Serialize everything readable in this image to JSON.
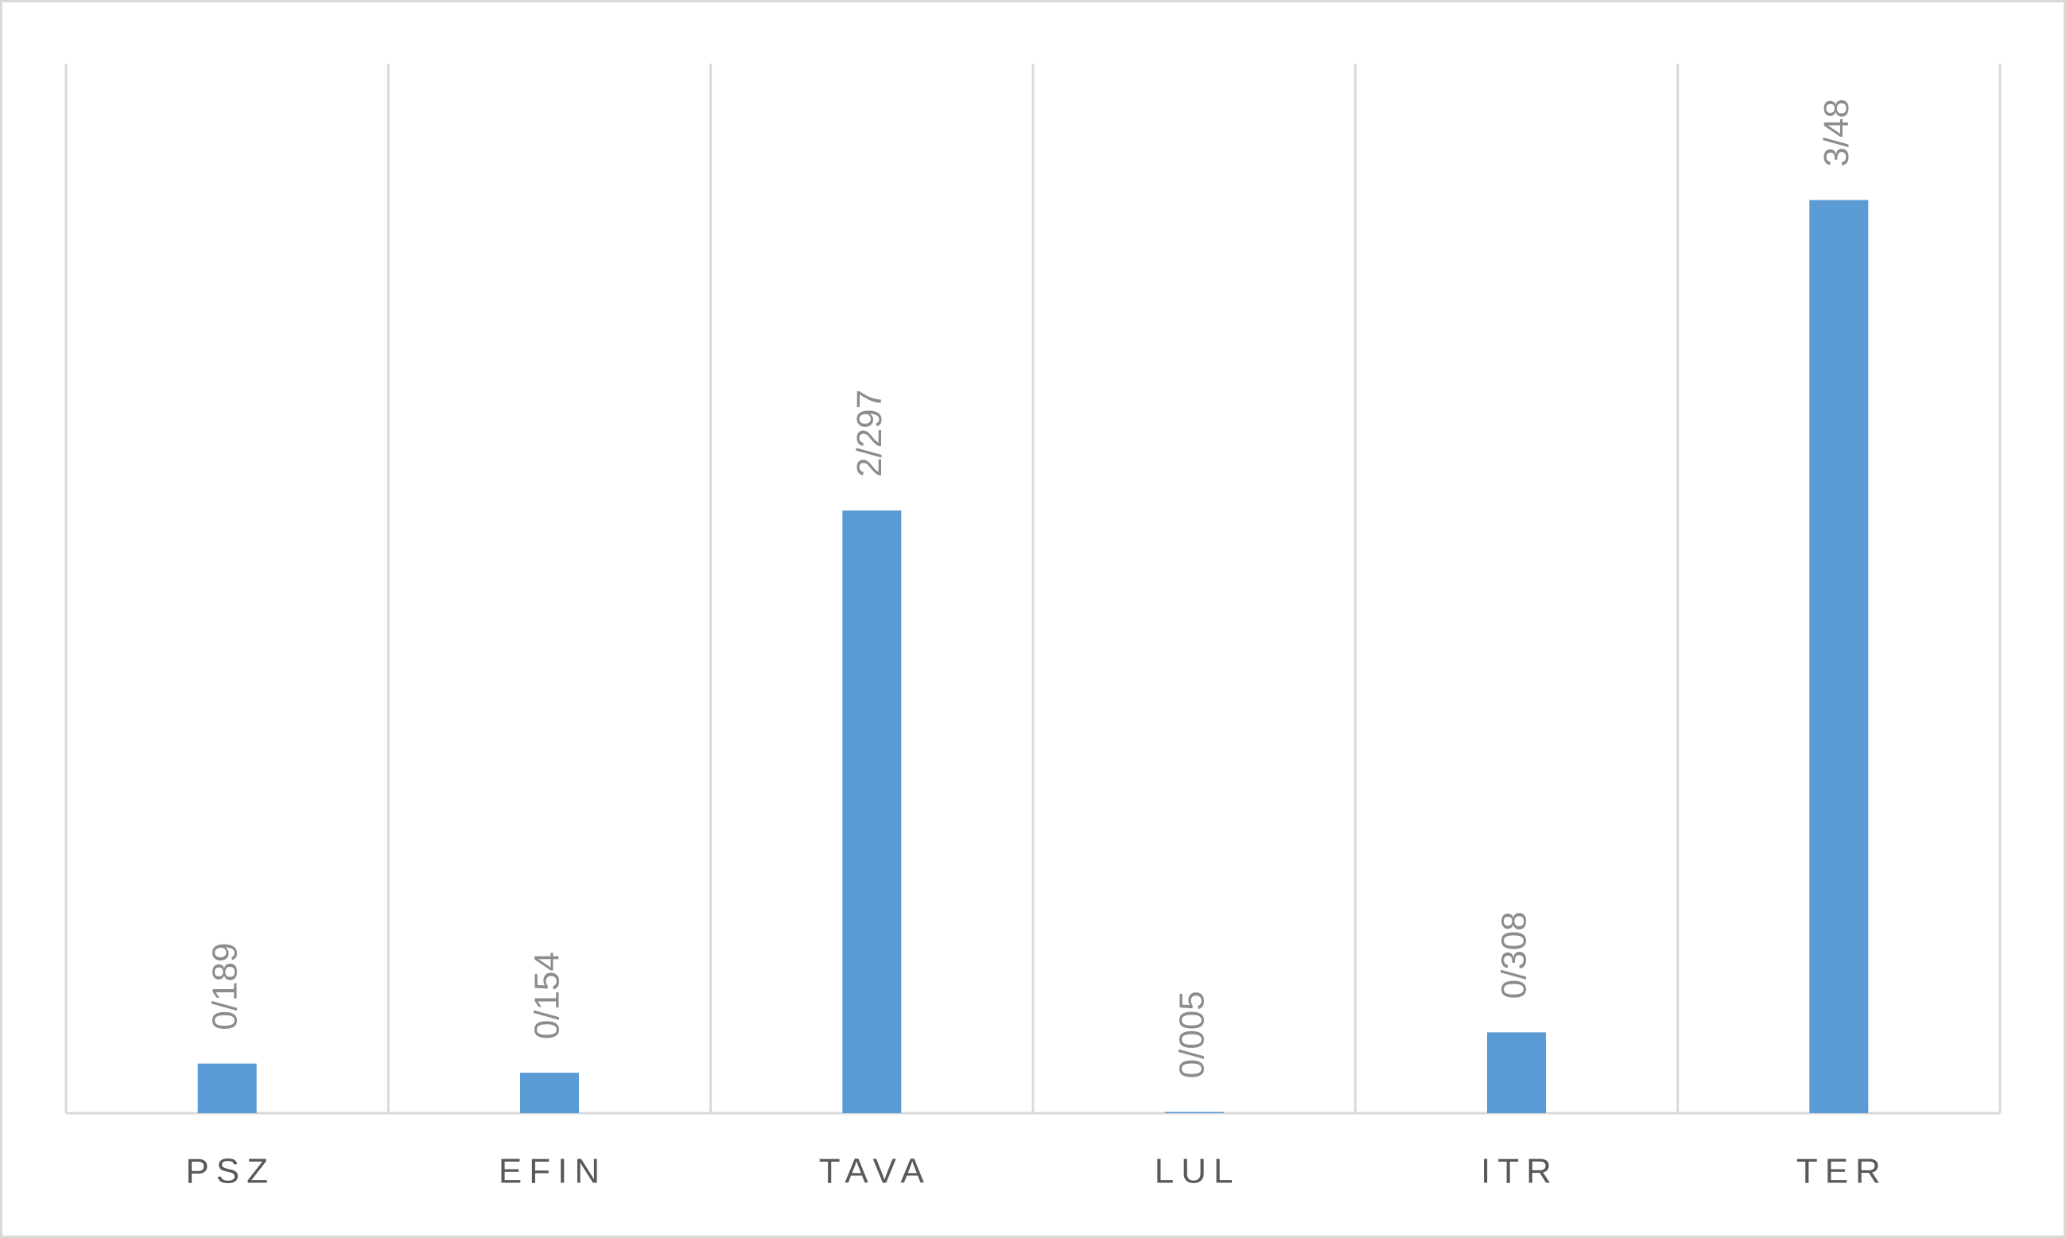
{
  "chart_data": {
    "type": "bar",
    "categories": [
      "PSZ",
      "EFIN",
      "TAVA",
      "LUL",
      "ITR",
      "TER"
    ],
    "values": [
      0.189,
      0.154,
      2.297,
      0.005,
      0.308,
      3.48
    ],
    "value_labels": [
      "0/189",
      "0/154",
      "2/297",
      "0/005",
      "0/308",
      "3/48"
    ],
    "color": "#5b9bd5",
    "ylim": [
      0,
      4
    ]
  }
}
